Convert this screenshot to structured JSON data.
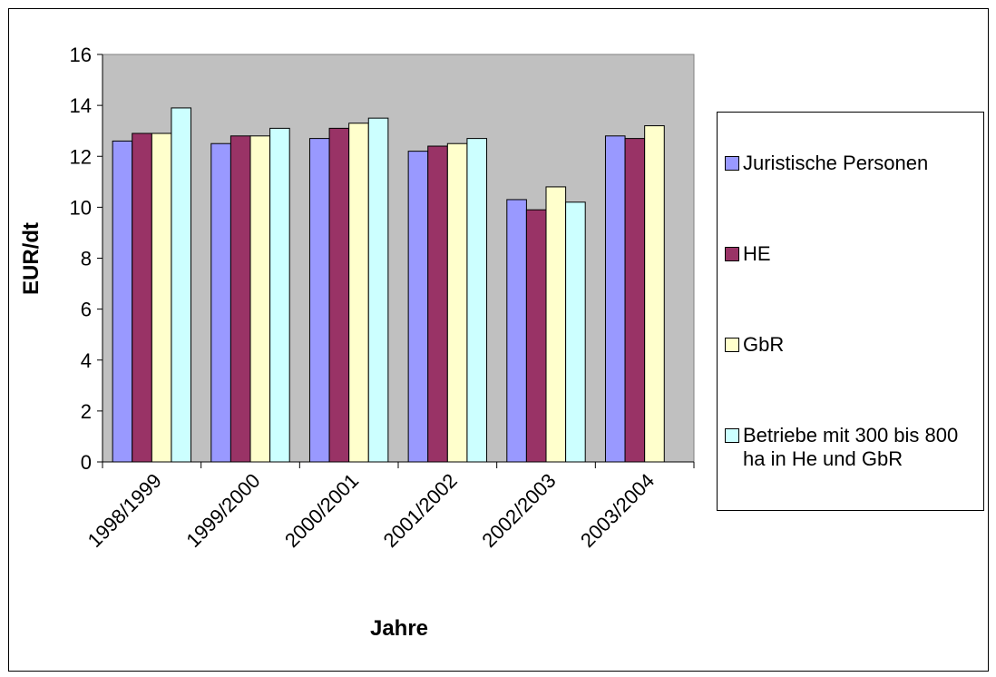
{
  "chart_data": {
    "type": "bar",
    "x_label": "Jahre",
    "y_label": "EUR/dt",
    "categories": [
      "1998/1999",
      "1999/2000",
      "2000/2001",
      "2001/2002",
      "2002/2003",
      "2003/2004"
    ],
    "series": [
      {
        "name": "Juristische Personen",
        "color": "#9999ff",
        "values": [
          12.6,
          12.5,
          12.7,
          12.2,
          10.3,
          12.8
        ]
      },
      {
        "name": "HE",
        "color": "#993366",
        "values": [
          12.9,
          12.8,
          13.1,
          12.4,
          9.9,
          12.7
        ]
      },
      {
        "name": "GbR",
        "color": "#ffffcc",
        "values": [
          12.9,
          12.8,
          13.3,
          12.5,
          10.8,
          13.2
        ]
      },
      {
        "name": "Betriebe mit 300 bis 800 ha in He und GbR",
        "color": "#ccffff",
        "values": [
          13.9,
          13.1,
          13.5,
          12.7,
          10.2,
          null
        ]
      }
    ],
    "ylim": [
      0,
      16
    ],
    "yticks": [
      0,
      2,
      4,
      6,
      8,
      10,
      12,
      14,
      16
    ],
    "plot_background": "#c0c0c0",
    "legend": "right"
  }
}
